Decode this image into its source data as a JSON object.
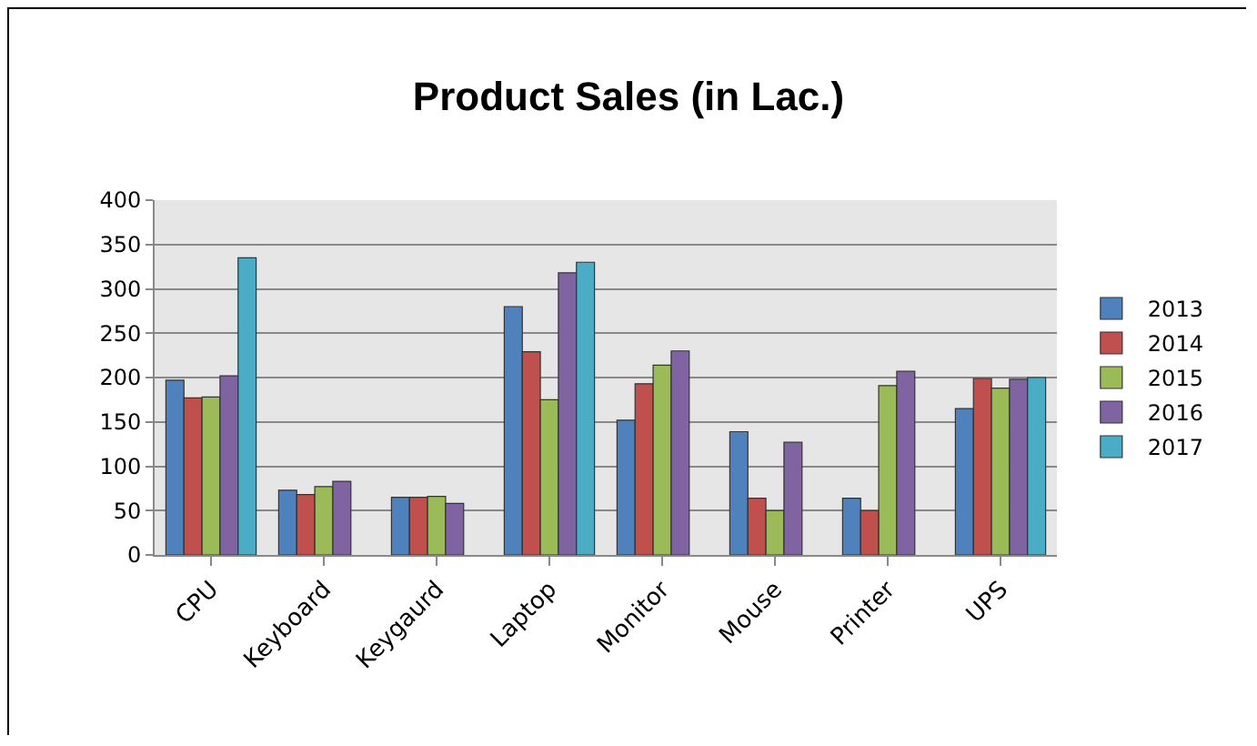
{
  "chart_data": {
    "type": "bar",
    "title": "Product Sales (in Lac.)",
    "categories": [
      "CPU",
      "Keyboard",
      "Keygaurd",
      "Laptop",
      "Monitor",
      "Mouse",
      "Printer",
      "UPS"
    ],
    "series": [
      {
        "name": "2013",
        "color": "#4f81bd",
        "values": [
          197,
          73,
          65,
          280,
          152,
          139,
          64,
          165
        ]
      },
      {
        "name": "2014",
        "color": "#c0504d",
        "values": [
          177,
          68,
          65,
          229,
          193,
          64,
          50,
          199
        ]
      },
      {
        "name": "2015",
        "color": "#9bbb59",
        "values": [
          178,
          77,
          66,
          175,
          214,
          50,
          191,
          188
        ]
      },
      {
        "name": "2016",
        "color": "#8064a2",
        "values": [
          202,
          83,
          58,
          318,
          230,
          127,
          207,
          198
        ]
      },
      {
        "name": "2017",
        "color": "#4bacc6",
        "values": [
          335,
          null,
          null,
          330,
          null,
          null,
          null,
          200
        ]
      }
    ],
    "ylim": [
      0,
      400
    ],
    "yticks": [
      0,
      50,
      100,
      150,
      200,
      250,
      300,
      350,
      400
    ],
    "grid": "y",
    "legend": "right"
  }
}
